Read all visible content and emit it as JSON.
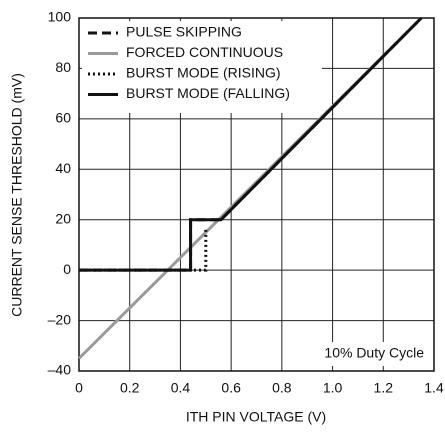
{
  "chart_data": {
    "type": "line",
    "xlabel": "ITH PIN VOLTAGE (V)",
    "ylabel": "CURRENT SENSE THRESHOLD (mV)",
    "annotation": "10% Duty Cycle",
    "xlim": [
      0,
      1.4
    ],
    "ylim": [
      -40,
      100
    ],
    "xticks": [
      0,
      0.2,
      0.4,
      0.6,
      0.8,
      {
        "value": 1,
        "label": "1.0"
      },
      1.2,
      1.4
    ],
    "yticks": [
      {
        "value": -40,
        "label": "–40"
      },
      {
        "value": -20,
        "label": "–20"
      },
      0,
      20,
      40,
      60,
      80,
      100
    ],
    "grid": true,
    "legend": "upper-left",
    "series": [
      {
        "name": "PULSE SKIPPING",
        "color": "#111111",
        "dash": "dashed",
        "x": [
          0,
          0.44,
          0.44,
          0.56,
          1.35
        ],
        "values": [
          0,
          0,
          20,
          20,
          100
        ]
      },
      {
        "name": "FORCED CONTINUOUS",
        "color": "#9a9a9a",
        "dash": "solid",
        "x": [
          0,
          1.35
        ],
        "values": [
          -35,
          100
        ]
      },
      {
        "name": "BURST MODE (RISING)",
        "color": "#111111",
        "dash": "dotted",
        "x": [
          0,
          0.5,
          0.5
        ],
        "values": [
          0,
          0,
          17
        ]
      },
      {
        "name": "BURST MODE (FALLING)",
        "color": "#111111",
        "dash": "solid",
        "x": [
          0,
          0.44,
          0.44,
          0.56,
          1.35
        ],
        "values": [
          0,
          0,
          20,
          20,
          100
        ]
      }
    ]
  }
}
